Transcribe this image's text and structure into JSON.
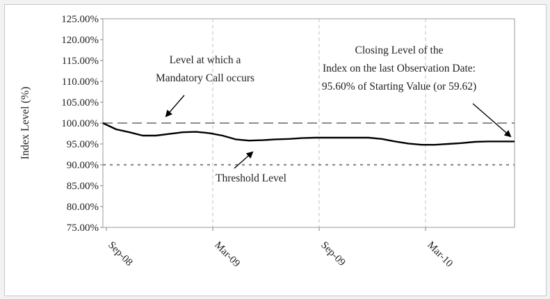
{
  "chart_data": {
    "type": "line",
    "ylabel": "Index Level (%)",
    "xlabel": "",
    "ylim": [
      75,
      125
    ],
    "yticks": [
      "125.00%",
      "120.00%",
      "115.00%",
      "110.00%",
      "105.00%",
      "100.00%",
      "95.00%",
      "90.00%",
      "85.00%",
      "80.00%",
      "75.00%"
    ],
    "xticks": [
      "Sep-08",
      "Mar-09",
      "Sep-09",
      "Mar-10"
    ],
    "series": [
      {
        "values": [
          100.0,
          98.5,
          97.8,
          97.0,
          97.0,
          97.4,
          97.8,
          97.9,
          97.6,
          97.0,
          96.1,
          95.8,
          95.9,
          96.1,
          96.2,
          96.4,
          96.5,
          96.5,
          96.5,
          96.5,
          96.5,
          96.2,
          95.6,
          95.1,
          94.8,
          94.8,
          95.0,
          95.2,
          95.5,
          95.6,
          95.6,
          95.6
        ]
      }
    ],
    "reference_lines": [
      {
        "label": "Level at which a Mandatory Call occurs",
        "value": 100.0,
        "style": "dashed",
        "color": "#8c8c8c"
      },
      {
        "label": "Threshold Level",
        "value": 90.0,
        "style": "dotted",
        "color": "#8c8c8c"
      }
    ],
    "annotations": {
      "call_line1": "Level at which a",
      "call_line2": "Mandatory Call occurs",
      "closing_line1": "Closing Level of the",
      "closing_line2": "Index on the last Observation Date:",
      "closing_line3": "95.60% of Starting Value (or 59.62)",
      "threshold": "Threshold Level"
    },
    "grid": "vertical-dashed",
    "colors": {
      "series": "#000000",
      "reference": "#8c8c8c",
      "grid": "#c0c0c0",
      "axis": "#808080"
    }
  }
}
